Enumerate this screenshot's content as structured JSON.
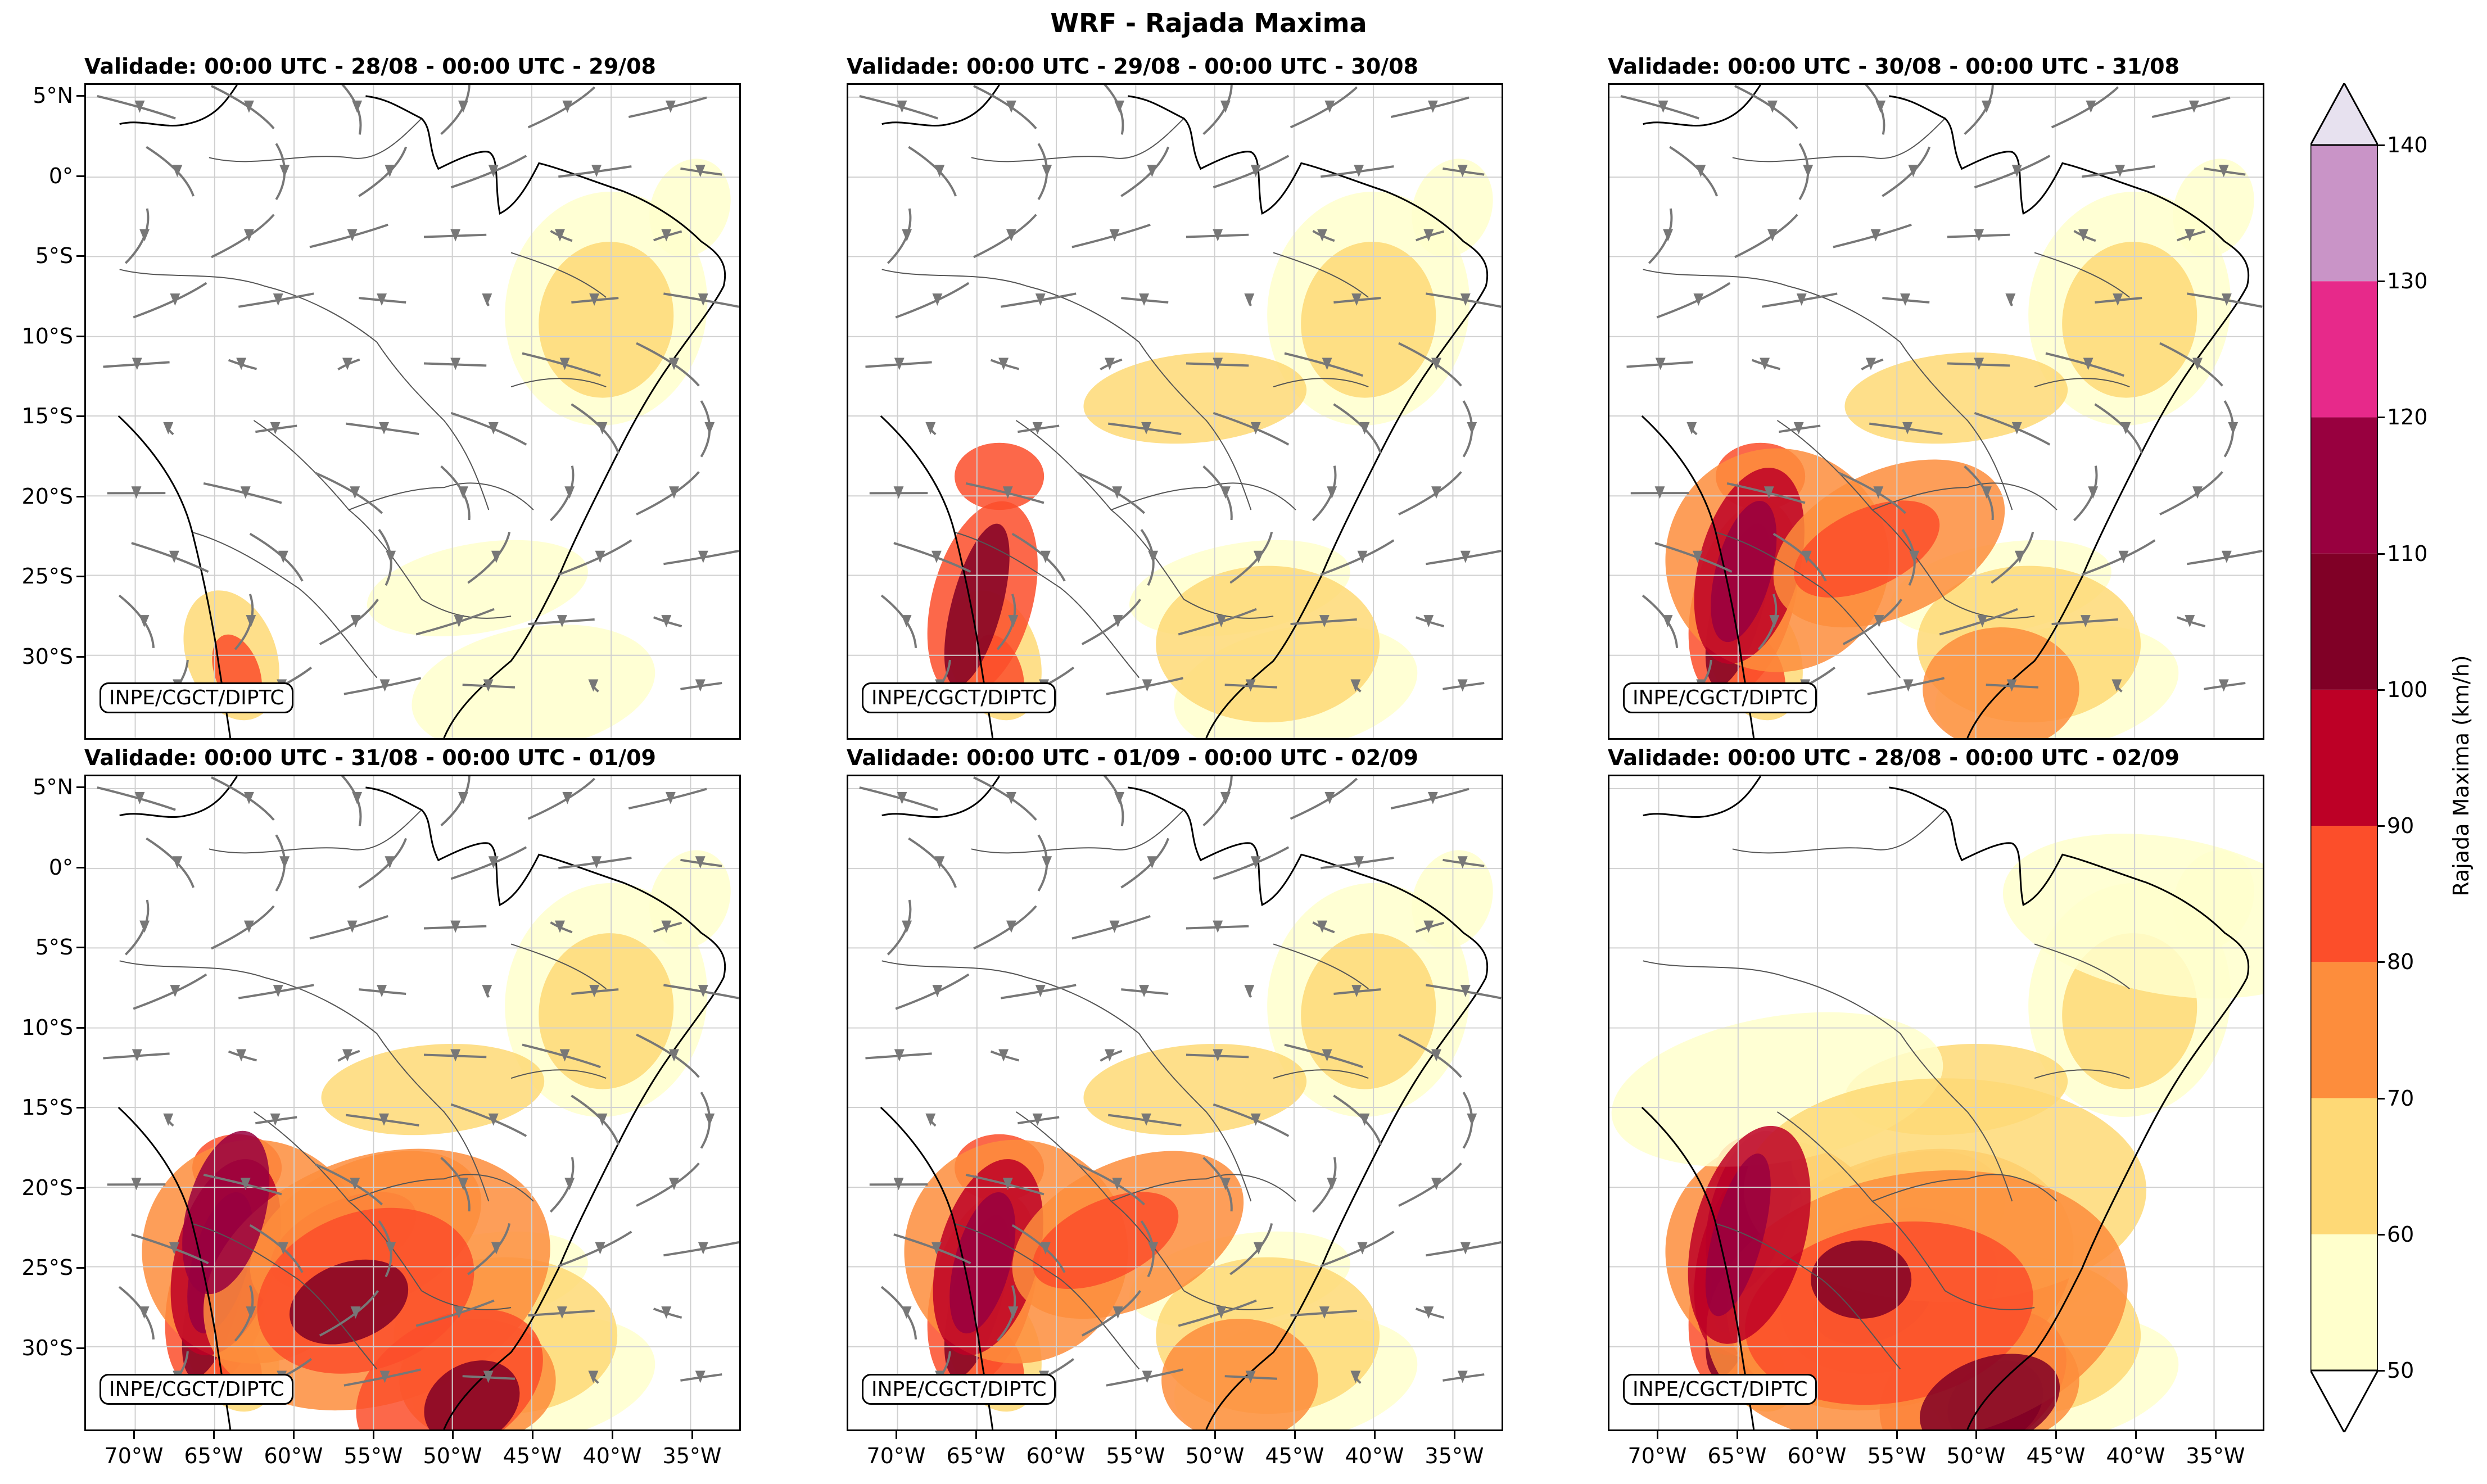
{
  "figure": {
    "title": "WRF - Rajada Maxima",
    "credit": "INPE/CGCT/DIPTC"
  },
  "panels": [
    {
      "title": "Validade: 00:00 UTC - 28/08 - 00:00 UTC - 29/08",
      "streamlines": true,
      "intensity": 1
    },
    {
      "title": "Validade: 00:00 UTC - 29/08 - 00:00 UTC - 30/08",
      "streamlines": true,
      "intensity": 2
    },
    {
      "title": "Validade: 00:00 UTC - 30/08 - 00:00 UTC - 31/08",
      "streamlines": true,
      "intensity": 3
    },
    {
      "title": "Validade: 00:00 UTC - 31/08 - 00:00 UTC - 01/09",
      "streamlines": true,
      "intensity": 4
    },
    {
      "title": "Validade: 00:00 UTC - 01/09 - 00:00 UTC - 02/09",
      "streamlines": true,
      "intensity": 3
    },
    {
      "title": "Validade: 00:00 UTC - 28/08 - 00:00 UTC - 02/09",
      "streamlines": false,
      "intensity": 5
    }
  ],
  "axes": {
    "lat_labels": [
      "5°N",
      "0°",
      "5°S",
      "10°S",
      "15°S",
      "20°S",
      "25°S",
      "30°S"
    ],
    "lon_labels": [
      "70°W",
      "65°W",
      "60°W",
      "55°W",
      "50°W",
      "45°W",
      "40°W",
      "35°W"
    ]
  },
  "colorbar": {
    "label": "Rajada Maxima (km/h)",
    "ticks": [
      "50",
      "60",
      "70",
      "80",
      "90",
      "100",
      "110",
      "120",
      "130",
      "140"
    ],
    "colors": [
      "#ffffcc",
      "#fed976",
      "#fd8d3c",
      "#fc4e2a",
      "#bd0026",
      "#800026",
      "#98003f",
      "#e7298a",
      "#c994c7",
      "#e7e1ef"
    ],
    "extend_low": "#ffffff",
    "extend_high": "#e7e1ef"
  },
  "style": {
    "stream_color": "#777777",
    "coast_color": "#000000",
    "border_color": "#555555",
    "grid_color": "#d0d0d0"
  }
}
